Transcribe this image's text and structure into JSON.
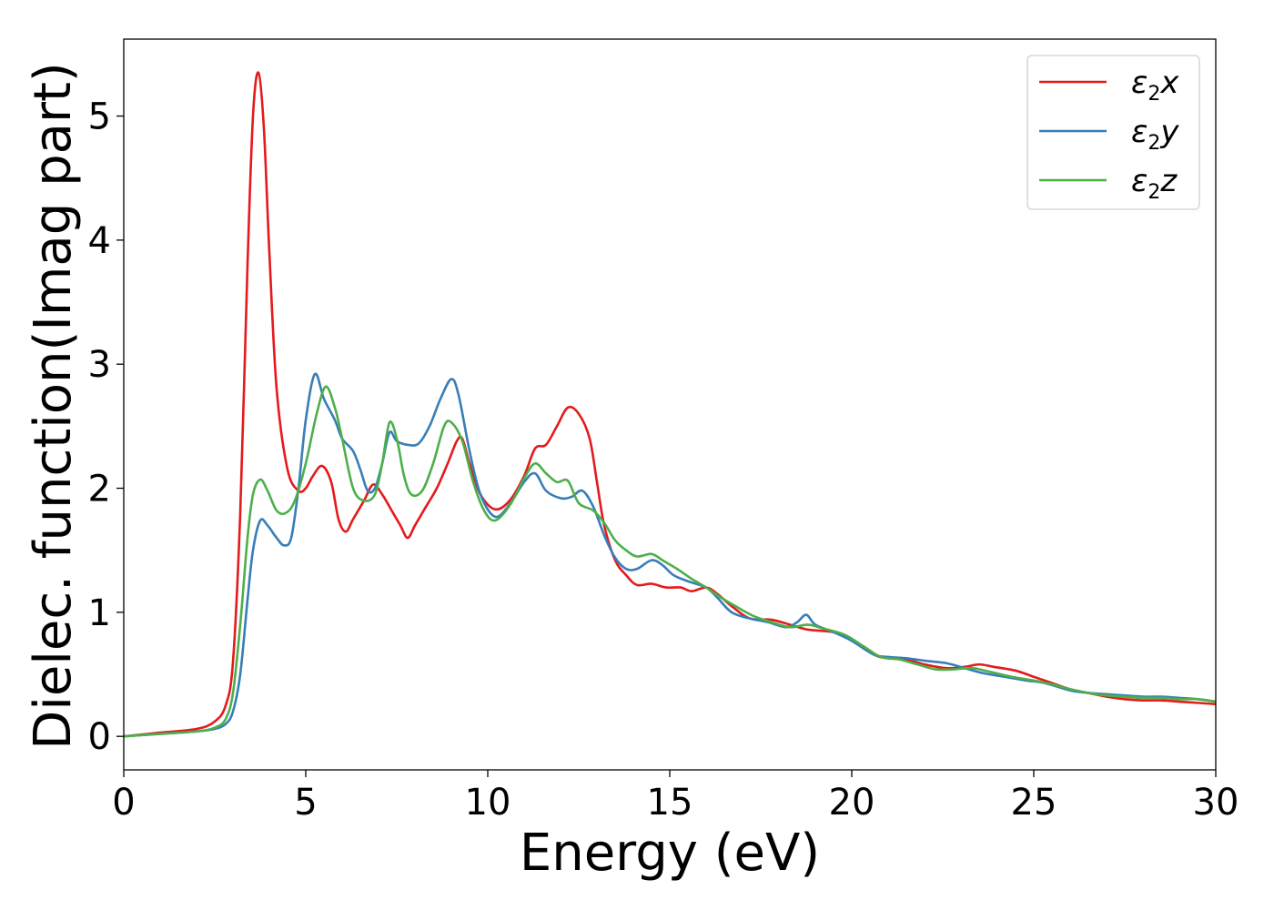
{
  "chart_data": {
    "type": "line",
    "xlabel": "Energy (eV)",
    "ylabel": "Dielec. function(Imag part)",
    "xlim": [
      0,
      30
    ],
    "ylim": [
      -0.27,
      5.62
    ],
    "xticks": [
      "0",
      "5",
      "10",
      "15",
      "20",
      "25",
      "30"
    ],
    "yticks": [
      "0",
      "1",
      "2",
      "3",
      "4",
      "5"
    ],
    "grid": false,
    "legend_position": "top-right",
    "series": [
      {
        "name": "ε2x",
        "legend_main": "ε",
        "legend_sub": "2",
        "legend_var": "x",
        "color": "#e41a1c",
        "points": [
          [
            0,
            0
          ],
          [
            1,
            0.03
          ],
          [
            2,
            0.06
          ],
          [
            2.5,
            0.12
          ],
          [
            2.8,
            0.25
          ],
          [
            3.0,
            0.6
          ],
          [
            3.2,
            1.8
          ],
          [
            3.4,
            3.8
          ],
          [
            3.55,
            5.0
          ],
          [
            3.7,
            5.35
          ],
          [
            3.85,
            4.9
          ],
          [
            4.0,
            3.9
          ],
          [
            4.2,
            2.8
          ],
          [
            4.5,
            2.15
          ],
          [
            4.8,
            1.98
          ],
          [
            5.0,
            2.0
          ],
          [
            5.2,
            2.1
          ],
          [
            5.45,
            2.18
          ],
          [
            5.7,
            2.05
          ],
          [
            5.9,
            1.75
          ],
          [
            6.1,
            1.65
          ],
          [
            6.3,
            1.75
          ],
          [
            6.6,
            1.9
          ],
          [
            6.85,
            2.03
          ],
          [
            7.1,
            1.95
          ],
          [
            7.4,
            1.8
          ],
          [
            7.6,
            1.7
          ],
          [
            7.8,
            1.6
          ],
          [
            8.0,
            1.7
          ],
          [
            8.3,
            1.85
          ],
          [
            8.6,
            2.0
          ],
          [
            8.9,
            2.2
          ],
          [
            9.15,
            2.38
          ],
          [
            9.3,
            2.4
          ],
          [
            9.5,
            2.2
          ],
          [
            9.8,
            1.95
          ],
          [
            10.2,
            1.83
          ],
          [
            10.6,
            1.9
          ],
          [
            11.0,
            2.1
          ],
          [
            11.3,
            2.32
          ],
          [
            11.6,
            2.35
          ],
          [
            11.9,
            2.5
          ],
          [
            12.2,
            2.65
          ],
          [
            12.5,
            2.6
          ],
          [
            12.8,
            2.4
          ],
          [
            13.0,
            2.05
          ],
          [
            13.2,
            1.7
          ],
          [
            13.5,
            1.42
          ],
          [
            13.8,
            1.3
          ],
          [
            14.1,
            1.22
          ],
          [
            14.5,
            1.23
          ],
          [
            14.9,
            1.2
          ],
          [
            15.3,
            1.2
          ],
          [
            15.6,
            1.17
          ],
          [
            16.0,
            1.2
          ],
          [
            16.3,
            1.15
          ],
          [
            16.7,
            1.05
          ],
          [
            17.2,
            0.95
          ],
          [
            17.8,
            0.94
          ],
          [
            18.3,
            0.9
          ],
          [
            18.8,
            0.86
          ],
          [
            19.5,
            0.84
          ],
          [
            20.0,
            0.78
          ],
          [
            20.6,
            0.66
          ],
          [
            21.0,
            0.63
          ],
          [
            21.5,
            0.62
          ],
          [
            22.0,
            0.58
          ],
          [
            22.6,
            0.55
          ],
          [
            23.1,
            0.56
          ],
          [
            23.5,
            0.58
          ],
          [
            23.9,
            0.56
          ],
          [
            24.5,
            0.53
          ],
          [
            25.0,
            0.48
          ],
          [
            25.5,
            0.43
          ],
          [
            26.0,
            0.38
          ],
          [
            26.5,
            0.35
          ],
          [
            27.0,
            0.32
          ],
          [
            27.5,
            0.3
          ],
          [
            28.0,
            0.29
          ],
          [
            28.5,
            0.29
          ],
          [
            29.0,
            0.28
          ],
          [
            29.5,
            0.27
          ],
          [
            30,
            0.26
          ]
        ]
      },
      {
        "name": "ε2y",
        "legend_main": "ε",
        "legend_sub": "2",
        "legend_var": "y",
        "color": "#377eb8",
        "points": [
          [
            0,
            0
          ],
          [
            1,
            0.02
          ],
          [
            2,
            0.04
          ],
          [
            2.5,
            0.06
          ],
          [
            2.8,
            0.1
          ],
          [
            3.0,
            0.2
          ],
          [
            3.2,
            0.5
          ],
          [
            3.4,
            1.1
          ],
          [
            3.55,
            1.5
          ],
          [
            3.75,
            1.74
          ],
          [
            3.95,
            1.7
          ],
          [
            4.2,
            1.6
          ],
          [
            4.4,
            1.54
          ],
          [
            4.6,
            1.6
          ],
          [
            4.8,
            2.0
          ],
          [
            5.0,
            2.55
          ],
          [
            5.25,
            2.92
          ],
          [
            5.5,
            2.72
          ],
          [
            5.8,
            2.55
          ],
          [
            6.0,
            2.4
          ],
          [
            6.3,
            2.3
          ],
          [
            6.5,
            2.15
          ],
          [
            6.7,
            1.98
          ],
          [
            6.9,
            2.0
          ],
          [
            7.1,
            2.2
          ],
          [
            7.3,
            2.45
          ],
          [
            7.5,
            2.38
          ],
          [
            7.8,
            2.35
          ],
          [
            8.1,
            2.36
          ],
          [
            8.4,
            2.5
          ],
          [
            8.7,
            2.72
          ],
          [
            9.0,
            2.88
          ],
          [
            9.2,
            2.75
          ],
          [
            9.5,
            2.3
          ],
          [
            9.8,
            1.95
          ],
          [
            10.2,
            1.77
          ],
          [
            10.6,
            1.87
          ],
          [
            11.0,
            2.05
          ],
          [
            11.3,
            2.12
          ],
          [
            11.6,
            1.98
          ],
          [
            12.0,
            1.92
          ],
          [
            12.3,
            1.93
          ],
          [
            12.6,
            1.98
          ],
          [
            12.9,
            1.85
          ],
          [
            13.2,
            1.62
          ],
          [
            13.5,
            1.44
          ],
          [
            13.8,
            1.35
          ],
          [
            14.1,
            1.35
          ],
          [
            14.5,
            1.42
          ],
          [
            14.8,
            1.38
          ],
          [
            15.1,
            1.3
          ],
          [
            15.5,
            1.25
          ],
          [
            16.0,
            1.2
          ],
          [
            16.3,
            1.12
          ],
          [
            16.7,
            1.0
          ],
          [
            17.2,
            0.95
          ],
          [
            17.7,
            0.92
          ],
          [
            18.2,
            0.88
          ],
          [
            18.5,
            0.92
          ],
          [
            18.75,
            0.98
          ],
          [
            19.0,
            0.9
          ],
          [
            19.5,
            0.84
          ],
          [
            20.0,
            0.77
          ],
          [
            20.6,
            0.66
          ],
          [
            21.0,
            0.64
          ],
          [
            21.5,
            0.63
          ],
          [
            22.0,
            0.61
          ],
          [
            22.6,
            0.59
          ],
          [
            23.1,
            0.55
          ],
          [
            23.6,
            0.51
          ],
          [
            24.2,
            0.48
          ],
          [
            24.8,
            0.45
          ],
          [
            25.3,
            0.43
          ],
          [
            26.0,
            0.37
          ],
          [
            26.5,
            0.35
          ],
          [
            27.0,
            0.34
          ],
          [
            27.5,
            0.33
          ],
          [
            28.0,
            0.32
          ],
          [
            28.5,
            0.32
          ],
          [
            29.0,
            0.31
          ],
          [
            29.5,
            0.3
          ],
          [
            30,
            0.28
          ]
        ]
      },
      {
        "name": "ε2z",
        "legend_main": "ε",
        "legend_sub": "2",
        "legend_var": "z",
        "color": "#4daf4a",
        "points": [
          [
            0,
            0
          ],
          [
            1,
            0.02
          ],
          [
            2,
            0.04
          ],
          [
            2.5,
            0.07
          ],
          [
            2.8,
            0.14
          ],
          [
            3.0,
            0.35
          ],
          [
            3.2,
            0.9
          ],
          [
            3.4,
            1.6
          ],
          [
            3.55,
            1.95
          ],
          [
            3.75,
            2.07
          ],
          [
            3.95,
            1.98
          ],
          [
            4.2,
            1.82
          ],
          [
            4.45,
            1.8
          ],
          [
            4.7,
            1.9
          ],
          [
            5.0,
            2.2
          ],
          [
            5.3,
            2.6
          ],
          [
            5.55,
            2.82
          ],
          [
            5.8,
            2.65
          ],
          [
            6.0,
            2.4
          ],
          [
            6.3,
            2.0
          ],
          [
            6.6,
            1.9
          ],
          [
            6.9,
            1.95
          ],
          [
            7.1,
            2.2
          ],
          [
            7.3,
            2.53
          ],
          [
            7.5,
            2.4
          ],
          [
            7.7,
            2.1
          ],
          [
            7.9,
            1.95
          ],
          [
            8.2,
            1.98
          ],
          [
            8.5,
            2.2
          ],
          [
            8.8,
            2.5
          ],
          [
            9.0,
            2.53
          ],
          [
            9.3,
            2.38
          ],
          [
            9.6,
            2.05
          ],
          [
            9.9,
            1.82
          ],
          [
            10.2,
            1.74
          ],
          [
            10.6,
            1.86
          ],
          [
            11.0,
            2.08
          ],
          [
            11.3,
            2.2
          ],
          [
            11.6,
            2.12
          ],
          [
            11.9,
            2.05
          ],
          [
            12.2,
            2.06
          ],
          [
            12.5,
            1.88
          ],
          [
            12.9,
            1.82
          ],
          [
            13.2,
            1.72
          ],
          [
            13.5,
            1.58
          ],
          [
            13.8,
            1.5
          ],
          [
            14.1,
            1.45
          ],
          [
            14.5,
            1.47
          ],
          [
            14.8,
            1.42
          ],
          [
            15.2,
            1.35
          ],
          [
            15.6,
            1.27
          ],
          [
            16.0,
            1.2
          ],
          [
            16.4,
            1.12
          ],
          [
            16.8,
            1.05
          ],
          [
            17.3,
            0.97
          ],
          [
            17.8,
            0.92
          ],
          [
            18.3,
            0.88
          ],
          [
            18.8,
            0.9
          ],
          [
            19.2,
            0.87
          ],
          [
            19.8,
            0.82
          ],
          [
            20.3,
            0.73
          ],
          [
            20.8,
            0.64
          ],
          [
            21.3,
            0.62
          ],
          [
            21.8,
            0.58
          ],
          [
            22.3,
            0.54
          ],
          [
            22.8,
            0.54
          ],
          [
            23.3,
            0.55
          ],
          [
            23.8,
            0.52
          ],
          [
            24.4,
            0.48
          ],
          [
            25.0,
            0.45
          ],
          [
            25.5,
            0.42
          ],
          [
            26.0,
            0.38
          ],
          [
            26.5,
            0.35
          ],
          [
            27.0,
            0.33
          ],
          [
            27.5,
            0.32
          ],
          [
            28.0,
            0.31
          ],
          [
            28.5,
            0.31
          ],
          [
            29.0,
            0.3
          ],
          [
            29.5,
            0.3
          ],
          [
            30,
            0.28
          ]
        ]
      }
    ]
  }
}
